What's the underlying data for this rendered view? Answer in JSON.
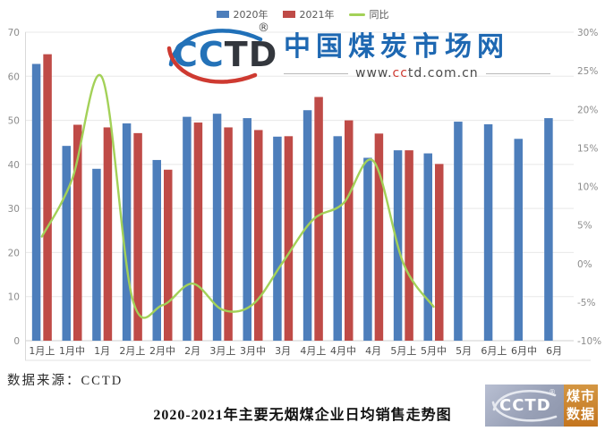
{
  "legend": {
    "items": [
      {
        "label": "2020年",
        "color": "#4D7EBB",
        "swatch": "rect"
      },
      {
        "label": "2021年",
        "color": "#BF4B47",
        "swatch": "rect"
      },
      {
        "label": "同比",
        "color": "#A3D158",
        "swatch": "line"
      }
    ]
  },
  "watermark": {
    "logo_cc": "CC",
    "logo_td": "TD",
    "reg": "®",
    "site_name": "中国煤炭市场网",
    "url_prefix": "www.",
    "url_highlight": "cc",
    "url_suffix": "td.com.cn"
  },
  "footer": {
    "source_note": "数据来源：CCTD",
    "title": "2020-2021年主要无烟煤企业日均销售走势图"
  },
  "badge": {
    "logo": "CCTD",
    "reg": "®",
    "line1": "煤市",
    "line2": "数据"
  },
  "chart_data": {
    "type": "bar",
    "title": "2020-2021年主要无烟煤企业日均销售走势图",
    "categories": [
      "1月上",
      "1月中",
      "1月",
      "2月上",
      "2月中",
      "2月",
      "3月上",
      "3月中",
      "3月",
      "4月上",
      "4月中",
      "4月",
      "5月上",
      "5月中",
      "5月",
      "6月上",
      "6月中",
      "6月"
    ],
    "series": [
      {
        "name": "2020年",
        "type": "bar",
        "color": "#4D7EBB",
        "values": [
          62.8,
          44.2,
          39.0,
          49.3,
          41.0,
          50.8,
          51.5,
          50.5,
          46.3,
          52.3,
          46.4,
          41.5,
          43.2,
          42.5,
          49.7,
          49.1,
          45.8,
          50.5
        ]
      },
      {
        "name": "2021年",
        "type": "bar",
        "color": "#BF4B47",
        "values": [
          65.0,
          49.0,
          48.4,
          47.1,
          38.8,
          49.5,
          48.4,
          47.8,
          46.4,
          55.3,
          50.0,
          47.0,
          43.2,
          40.1,
          null,
          null,
          null,
          null
        ]
      },
      {
        "name": "同比",
        "type": "line",
        "color": "#A3D158",
        "axis": "right",
        "unit": "%",
        "values": [
          3.5,
          10.9,
          24.1,
          -4.5,
          -5.4,
          -2.6,
          -6.0,
          -5.3,
          0.2,
          5.7,
          7.8,
          13.3,
          0.0,
          -5.6,
          null,
          null,
          null,
          null
        ]
      }
    ],
    "left_axis": {
      "min": 0,
      "max": 70,
      "ticks": [
        0,
        10,
        20,
        30,
        40,
        50,
        60,
        70
      ]
    },
    "right_axis": {
      "min": -10,
      "max": 30,
      "step": 5,
      "labels": [
        "-10%",
        "-5%",
        "0%",
        "5%",
        "10%",
        "15%",
        "20%",
        "25%",
        "30%"
      ]
    },
    "grid": true,
    "legend_position": "top",
    "xlabel": "",
    "ylabel": ""
  }
}
